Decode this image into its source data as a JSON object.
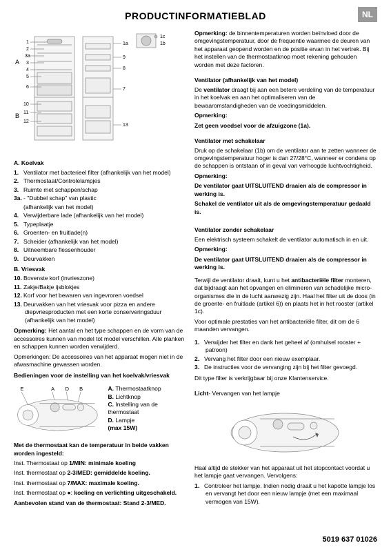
{
  "header": {
    "title": "PRODUCTINFORMATIEBLAD",
    "lang": "NL"
  },
  "diagram": {
    "labels_left": [
      "A",
      "B"
    ],
    "nums_left": [
      "1",
      "2",
      "3a",
      "3",
      "4",
      "5",
      "6",
      "10",
      "11",
      "12"
    ],
    "nums_right": [
      "1c",
      "1b",
      "1a",
      "9",
      "8",
      "7",
      "13"
    ]
  },
  "left": {
    "sectA_title": "A. Koelvak",
    "sectA_items": [
      {
        "n": "1.",
        "t": "Ventilator met bacterieel filter (afhankelijk van het model)"
      },
      {
        "n": "2.",
        "t": "Thermostaat/Controlelampjes"
      },
      {
        "n": "3.",
        "t": "Ruimte met schappen/schap"
      },
      {
        "n": "3a.",
        "t": "- \"Dubbel schap\" van plastic"
      },
      {
        "n": "",
        "t": "(afhankelijk van het model)",
        "sub": true
      },
      {
        "n": "4.",
        "t": "Verwijderbare lade (afhankelijk van het model)"
      },
      {
        "n": "5.",
        "t": "Typeplaatje"
      },
      {
        "n": "6.",
        "t": "Groenten- en fruitlade(n)"
      },
      {
        "n": "7.",
        "t": "Scheider (afhankelijk van het model)"
      },
      {
        "n": "8.",
        "t": "Uitneembare flessenhouder"
      },
      {
        "n": "9.",
        "t": "Deurvakken"
      }
    ],
    "sectB_title": "B. Vriesvak",
    "sectB_items": [
      {
        "n": "10.",
        "t": "Bovenste korf (invrieszone)"
      },
      {
        "n": "11.",
        "t": "Zakje/Bakje ijsblokjes"
      },
      {
        "n": "12.",
        "t": "Korf voor het bewaren van ingevroren voedsel"
      },
      {
        "n": "13.",
        "t": "Deurvakken van het vriesvak voor pizza en andere diepvriesproducten met een korte conserveringsduur (afhankelijk van het model)"
      }
    ],
    "note1_label": "Opmerking:",
    "note1_body": " Het aantal en het type schappen en de vorm van de accessoires kunnen van model tot model verschillen. Alle planken en schappen kunnen worden verwijderd.",
    "note1_extra": "Opmerkingen: De accessoires van het apparaat mogen niet in de afwasmachine gewassen worden.",
    "controls_title": "Bedieningen voor de instelling van het koelvak/vriesvak",
    "ctrl_labels": [
      "E",
      "A",
      "D",
      "B"
    ],
    "ctrl_legend": [
      {
        "k": "A.",
        "v": "Thermostaatknop"
      },
      {
        "k": "B.",
        "v": "Lichtknop"
      },
      {
        "k": "C.",
        "v": "Instelling van de thermostaat"
      },
      {
        "k": "D.",
        "v": "Lampje"
      },
      {
        "k": "",
        "v": "(max 15W)",
        "bold": true
      }
    ],
    "thermo_title": "Met de thermostaat kan de temperatuur in beide vakken worden ingesteld:",
    "thermo_lines": [
      [
        "Inst. Thermostaat op ",
        "1/MIN: minimale koeling"
      ],
      [
        "Inst. thermostaat op ",
        "2-3/MED: gemiddelde koeling."
      ],
      [
        "Inst. thermostaat op ",
        "7/MAX: maximale koeling."
      ],
      [
        "Inst. thermostaat op ●: ",
        "koeling en verlichting uitgeschakeld."
      ]
    ],
    "thermo_rec": "Aanbevolen stand van de thermostaat: Stand 2-3/MED."
  },
  "right": {
    "opm1_label": "Opmerking:",
    "opm1_body": " de binnentemperaturen worden beïnvloed door de omgevingstemperatuur, door de frequentie waarmee de deuren van het apparaat geopend worden en de positie ervan in het vertrek. Bij het instellen van de thermostaatknop moet rekening gehouden worden met deze factoren.",
    "vent_title": "Ventilator (afhankelijk van het model)",
    "vent_body": [
      "De ",
      "ventilator",
      " draagt bij aan een betere verdeling van de temperatuur in het koelvak en aan het optimaliseren van de bewaaromstandigheden van de voedingsmiddelen."
    ],
    "vent_opm_label": "Opmerking:",
    "vent_opm_body": "Zet geen voedsel voor de afzuigzone (1a).",
    "vswitch_title": "Ventilator met schakelaar",
    "vswitch_body": "Druk op de schakelaar (1b) om de ventilator aan te zetten wanneer de omgevingstemperatuur hoger is dan 27/28°C, wanneer er condens op de schappen is ontstaan of in geval van verhoogde luchtvochtigheid.",
    "vswitch_opm_label": "Opmerking:",
    "vswitch_opm_b1": "De ventilator gaat UITSLUITEND draaien als de compressor in werking is.",
    "vswitch_opm_b2": "Schakel de ventilator uit als de omgevingstemperatuur gedaald is.",
    "vnos_title": "Ventilator zonder schakelaar",
    "vnos_body": "Een elektrisch systeem schakelt de ventilator automatisch in en uit.",
    "vnos_opm_label": "Opmerking:",
    "vnos_opm_body": "De ventilator gaat UITSLUITEND draaien als de compressor in werking is.",
    "filter_p1": [
      "Terwijl de ventilator draait, kunt u het ",
      "antibacteriële filter",
      " monteren, dat bijdraagt aan het opvangen en elimineren van schadelijke micro-organismes die in de lucht aanwezig zijn. Haal het filter uit de doos (in de groente- en fruitlade (artikel 6)) en plaats het in het rooster (artikel 1c)."
    ],
    "filter_p2": "Voor optimale prestaties van het antibacteriële filter, dit om de 6 maanden vervangen.",
    "filter_steps": [
      {
        "n": "1.",
        "t": "Verwijder het filter en dank het geheel af (omhulsel rooster + patroon)"
      },
      {
        "n": "2.",
        "t": "Vervang het filter door een nieuw exemplaar."
      },
      {
        "n": "3.",
        "t": "De instructies voor de vervanging zijn bij het filter gevoegd."
      }
    ],
    "filter_foot": "Dit type filter is verkrijgbaar bij onze Klantenservice.",
    "lamp_title": [
      "Licht",
      "- Vervangen van het lampje"
    ],
    "lamp_warn": "Haal altijd de stekker van het apparaat uit het stopcontact voordat u het lampje gaat vervangen. Vervolgens:",
    "lamp_steps": [
      {
        "n": "1.",
        "t": "Controleer het lampje. Indien nodig draait u het kapotte lampje los en vervangt het door een nieuw lampje (met een maximaal vermogen van 15W)."
      }
    ]
  },
  "footer": "5019 637 01026"
}
